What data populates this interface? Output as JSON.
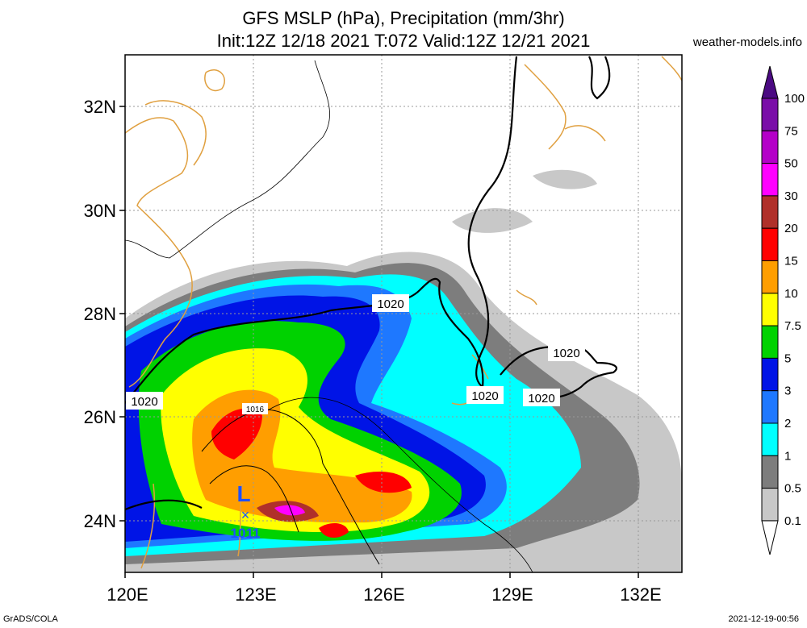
{
  "title_line1": "GFS MSLP (hPa), Precipitation (mm/3hr)",
  "title_line2": "Init:12Z 12/18 2021 T:072 Valid:12Z 12/21 2021",
  "site": "weather-models.info",
  "footer_left": "GrADS/COLA",
  "footer_right": "2021-12-19-00:56",
  "lat_labels": [
    "32N",
    "30N",
    "28N",
    "26N",
    "24N"
  ],
  "lon_labels": [
    "120E",
    "123E",
    "126E",
    "129E",
    "132E"
  ],
  "contour_labels": [
    "1020",
    "1020",
    "1020",
    "1020",
    "1020",
    "1016"
  ],
  "low": {
    "symbol": "L",
    "pressure": "1011"
  },
  "colorbar": {
    "labels": [
      "100",
      "75",
      "50",
      "30",
      "20",
      "15",
      "10",
      "7.5",
      "5",
      "3",
      "2",
      "1",
      "0.5",
      "0.1"
    ],
    "colors": [
      "#7a0ea8",
      "#b400c8",
      "#ff00ff",
      "#b0302a",
      "#ff0000",
      "#ff9e00",
      "#ffff00",
      "#00d200",
      "#0014e6",
      "#1e78ff",
      "#00ffff",
      "#7d7d7d",
      "#c8c8c8"
    ],
    "top_color": "#4b0a82"
  }
}
